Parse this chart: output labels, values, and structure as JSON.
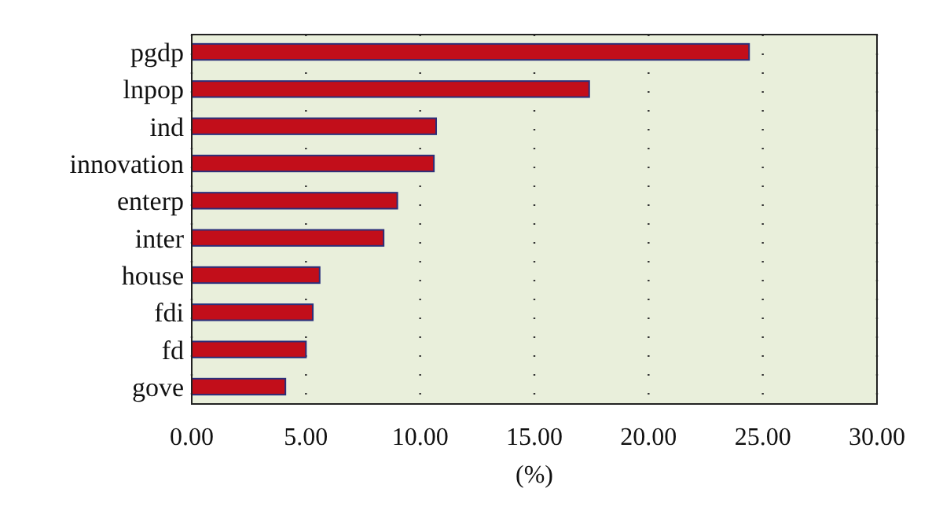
{
  "chart_data": {
    "type": "bar",
    "orientation": "horizontal",
    "xlabel": "(%)",
    "categories": [
      "pgdp",
      "lnpop",
      "ind",
      "innovation",
      "enterp",
      "inter",
      "house",
      "fdi",
      "fd",
      "gove"
    ],
    "values": [
      24.4,
      17.4,
      10.7,
      10.6,
      9.0,
      8.4,
      5.6,
      5.3,
      5.0,
      4.1
    ],
    "color": "#c20e1a",
    "xlim": [
      0,
      30
    ],
    "xticks": [
      {
        "value": 0,
        "label": "0.00"
      },
      {
        "value": 5,
        "label": "5.00"
      },
      {
        "value": 10,
        "label": "10.00"
      },
      {
        "value": 15,
        "label": "15.00"
      },
      {
        "value": 20,
        "label": "20.00"
      },
      {
        "value": 25,
        "label": "25.00"
      },
      {
        "value": 30,
        "label": "30.00"
      }
    ],
    "grid": "x"
  }
}
